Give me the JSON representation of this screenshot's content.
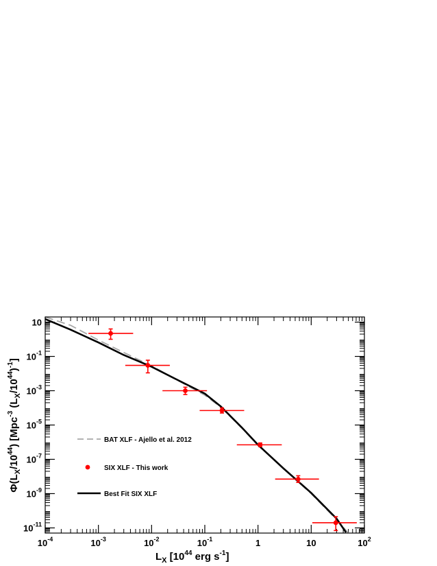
{
  "chart_data": {
    "type": "scatter",
    "title": "",
    "xlabel": "L_X [10^44 erg s^-1]",
    "ylabel": "Φ(L_X/10^44) [Mpc^-3 (L_X/10^44)^-1]",
    "x_scale": "log",
    "y_scale": "log",
    "xlim": [
      0.0001,
      100
    ],
    "ylim": [
      5e-12,
      20
    ],
    "grid": false,
    "legend_position": "center-left",
    "x_ticks": [
      {
        "value": 0.0001,
        "base": "10",
        "exp": "-4"
      },
      {
        "value": 0.001,
        "base": "10",
        "exp": "-3"
      },
      {
        "value": 0.01,
        "base": "10",
        "exp": "-2"
      },
      {
        "value": 0.1,
        "base": "10",
        "exp": "-1"
      },
      {
        "value": 1,
        "base": "1",
        "exp": ""
      },
      {
        "value": 10,
        "base": "10",
        "exp": ""
      },
      {
        "value": 100,
        "base": "10",
        "exp": "2"
      }
    ],
    "y_ticks": [
      {
        "value": 10,
        "base": "10",
        "exp": ""
      },
      {
        "value": 0.1,
        "base": "10",
        "exp": "-1"
      },
      {
        "value": 0.001,
        "base": "10",
        "exp": "-3"
      },
      {
        "value": 1e-05,
        "base": "10",
        "exp": "-5"
      },
      {
        "value": 1e-07,
        "base": "10",
        "exp": "-7"
      },
      {
        "value": 1e-09,
        "base": "10",
        "exp": "-9"
      },
      {
        "value": 1e-11,
        "base": "10",
        "exp": "-11"
      }
    ],
    "series": [
      {
        "name": "BAT XLF - Ajello et al. 2012",
        "kind": "line",
        "style": "dashed",
        "color": "#a8a8a8",
        "x": [
          0.0001,
          0.0003,
          0.001,
          0.003,
          0.01,
          0.03,
          0.1,
          0.2,
          0.5,
          1,
          3,
          10,
          30,
          50
        ],
        "y": [
          22,
          6.5,
          0.9,
          0.17,
          0.028,
          0.0042,
          0.00055,
          0.00011,
          6.5e-06,
          6.5e-07,
          3e-08,
          1e-09,
          3e-11,
          5e-12
        ]
      },
      {
        "name": "SIX XLF - This work",
        "kind": "points",
        "color": "#ff0000",
        "points": [
          {
            "x": 0.0017,
            "y": 2.2,
            "xlo": 0.00065,
            "xhi": 0.0045,
            "ylo": 1.0,
            "yhi": 4.0
          },
          {
            "x": 0.0085,
            "y": 0.03,
            "xlo": 0.0032,
            "xhi": 0.022,
            "ylo": 0.011,
            "yhi": 0.06
          },
          {
            "x": 0.043,
            "y": 0.001,
            "xlo": 0.016,
            "xhi": 0.11,
            "ylo": 0.0006,
            "yhi": 0.0016
          },
          {
            "x": 0.21,
            "y": 7e-05,
            "xlo": 0.08,
            "xhi": 0.55,
            "ylo": 5e-05,
            "yhi": 0.0001
          },
          {
            "x": 1.1,
            "y": 7e-07,
            "xlo": 0.4,
            "xhi": 2.8,
            "ylo": 5.5e-07,
            "yhi": 9e-07
          },
          {
            "x": 5.7,
            "y": 7e-09,
            "xlo": 2.1,
            "xhi": 14,
            "ylo": 4.5e-09,
            "yhi": 1.1e-08
          },
          {
            "x": 29,
            "y": 2e-11,
            "xlo": 10.5,
            "xhi": 72,
            "ylo": 7e-12,
            "yhi": 4.5e-11
          }
        ]
      },
      {
        "name": "Best Fit SIX XLF",
        "kind": "line",
        "style": "solid",
        "color": "#000000",
        "x": [
          0.0001,
          0.0003,
          0.001,
          0.003,
          0.01,
          0.03,
          0.1,
          0.2,
          0.5,
          1,
          3,
          10,
          30,
          45
        ],
        "y": [
          15,
          3.6,
          0.65,
          0.12,
          0.025,
          0.0044,
          0.00068,
          0.00012,
          7e-06,
          7e-07,
          3e-08,
          1.1e-09,
          3.5e-11,
          5.5e-12
        ]
      }
    ]
  },
  "legend": {
    "bat_label": "BAT XLF - Ajello et al. 2012",
    "six_label": "SIX XLF - This work",
    "fit_label": "Best Fit SIX XLF"
  }
}
